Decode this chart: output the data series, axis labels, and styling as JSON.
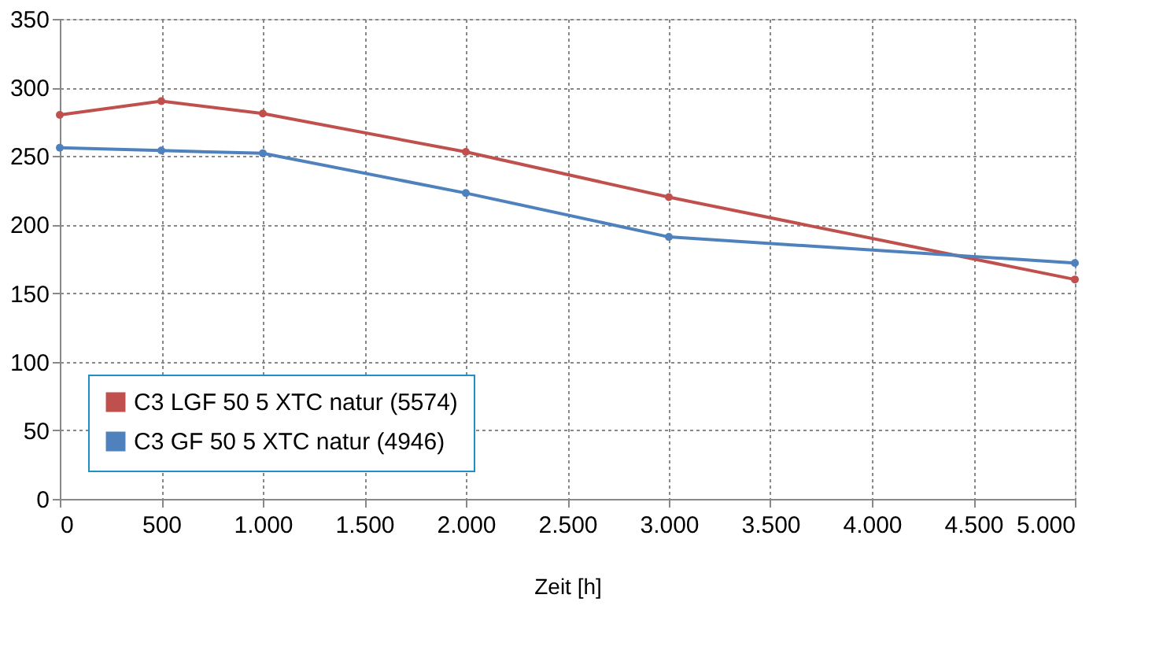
{
  "chart_data": {
    "type": "line",
    "xlabel": "Zeit [h]",
    "x": [
      0,
      500,
      1000,
      2000,
      3000,
      5000
    ],
    "series": [
      {
        "name": "C3 LGF 50 5 XTC natur (5574)",
        "color": "#c0504d",
        "values": [
          280,
          290,
          281,
          253,
          220,
          160
        ]
      },
      {
        "name": "C3 GF 50 5 XTC natur (4946)",
        "color": "#4f81bd",
        "values": [
          256,
          254,
          252,
          223,
          191,
          172
        ]
      }
    ],
    "xlim": [
      0,
      5000
    ],
    "xticks": [
      0,
      500,
      {
        "value": 1000,
        "label": "1.000"
      },
      {
        "value": 1500,
        "label": "1.500"
      },
      {
        "value": 2000,
        "label": "2.000"
      },
      {
        "value": 2500,
        "label": "2.500"
      },
      {
        "value": 3000,
        "label": "3.000"
      },
      {
        "value": 3500,
        "label": "3.500"
      },
      {
        "value": 4000,
        "label": "4.000"
      },
      {
        "value": 4500,
        "label": "4.500"
      },
      {
        "value": 5000,
        "label": "5.000"
      }
    ],
    "ylim": [
      0,
      350
    ],
    "yticks": [
      0,
      50,
      100,
      150,
      200,
      250,
      300,
      350
    ],
    "grid": true,
    "legend": "bottom left",
    "marker": "circle",
    "line_style": "solid"
  }
}
